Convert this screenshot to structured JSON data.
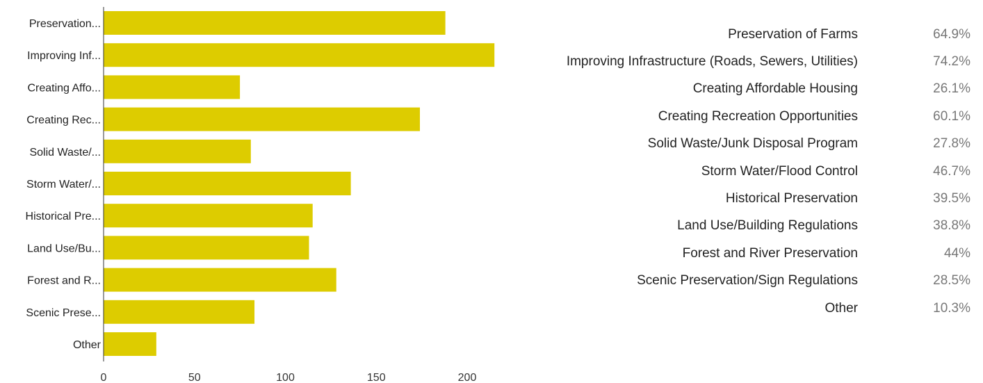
{
  "chart_data": {
    "type": "bar",
    "orientation": "horizontal",
    "categories": [
      "Preservation...",
      "Improving Inf...",
      "Creating Affo...",
      "Creating Rec...",
      "Solid Waste/...",
      "Storm Water/...",
      "Historical Pre...",
      "Land Use/Bu...",
      "Forest and R...",
      "Scenic Prese...",
      "Other"
    ],
    "values": [
      188,
      215,
      75,
      174,
      81,
      136,
      115,
      113,
      128,
      83,
      29
    ],
    "bar_color": "#ddcc00",
    "xlim": [
      0,
      225
    ],
    "xticks": [
      "0",
      "50",
      "100",
      "150",
      "200"
    ],
    "grid": false,
    "legend": {
      "placement": "right",
      "items": [
        {
          "label": "Preservation of Farms",
          "percent": "64.9%"
        },
        {
          "label": "Improving Infrastructure (Roads, Sewers, Utilities)",
          "percent": "74.2%"
        },
        {
          "label": "Creating Affordable Housing",
          "percent": "26.1%"
        },
        {
          "label": "Creating Recreation Opportunities",
          "percent": "60.1%"
        },
        {
          "label": "Solid Waste/Junk Disposal Program",
          "percent": "27.8%"
        },
        {
          "label": "Storm Water/Flood Control",
          "percent": "46.7%"
        },
        {
          "label": "Historical Preservation",
          "percent": "39.5%"
        },
        {
          "label": "Land Use/Building Regulations",
          "percent": "38.8%"
        },
        {
          "label": "Forest and River Preservation",
          "percent": "44%"
        },
        {
          "label": "Scenic Preservation/Sign Regulations",
          "percent": "28.5%"
        },
        {
          "label": "Other",
          "percent": "10.3%"
        }
      ]
    }
  }
}
